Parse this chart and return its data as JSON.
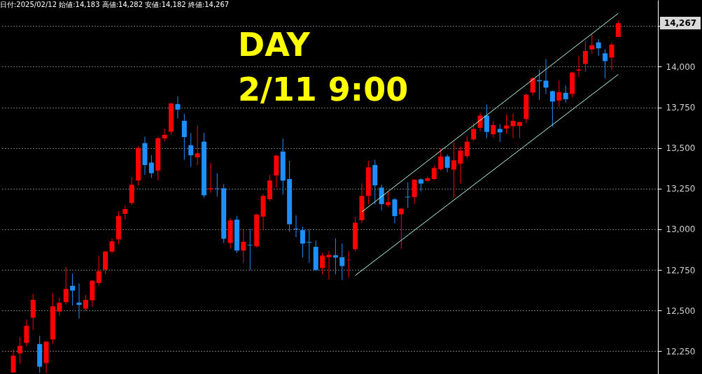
{
  "chart_data": {
    "type": "candlestick",
    "annotations": [
      "日付:2025/02/12 始値:14,183 高値:14,282 安値:14,182 終値:14,267",
      "DAY",
      "2/11 9:00",
      "14,267"
    ],
    "categories": [
      null,
      null,
      null,
      null,
      null,
      null,
      null,
      null,
      null,
      null,
      null,
      null,
      null,
      null,
      null,
      null,
      null,
      null,
      null,
      null,
      null,
      null,
      null,
      null,
      null,
      null,
      null,
      null,
      null,
      null,
      null,
      null,
      null,
      null,
      null,
      null,
      null,
      null,
      null,
      null,
      null,
      null,
      null,
      null,
      null,
      null,
      null,
      null,
      null,
      null,
      null,
      null,
      null,
      null,
      null,
      null,
      null,
      null,
      null,
      null,
      null,
      null,
      null,
      null,
      null,
      null,
      null,
      null,
      null,
      null,
      null,
      null,
      null,
      null,
      null,
      null,
      null,
      null,
      null,
      null,
      null,
      null,
      null,
      null,
      null,
      null,
      null,
      null,
      null,
      null,
      null,
      null,
      null
    ],
    "ohlc": [
      [
        12120,
        12263,
        12118,
        12223
      ],
      [
        12237,
        12337,
        12173,
        12283
      ],
      [
        12301,
        12445,
        12280,
        12406
      ],
      [
        12456,
        12602,
        12380,
        12566
      ],
      [
        12294,
        12344,
        12118,
        12155
      ],
      [
        12177,
        12312,
        12118,
        12309
      ],
      [
        12323,
        12605,
        12294,
        12526
      ],
      [
        12494,
        12580,
        12469,
        12548
      ],
      [
        12552,
        12766,
        12537,
        12633
      ],
      [
        12652,
        12728,
        12531,
        12623
      ],
      [
        12549,
        12666,
        12451,
        12535
      ],
      [
        12512,
        12596,
        12497,
        12566
      ],
      [
        12563,
        12687,
        12523,
        12683
      ],
      [
        12670,
        12835,
        12652,
        12742
      ],
      [
        12752,
        12866,
        12723,
        12863
      ],
      [
        12863,
        12945,
        12852,
        12926
      ],
      [
        12938,
        13110,
        12909,
        13081
      ],
      [
        13095,
        13145,
        13059,
        13124
      ],
      [
        13162,
        13321,
        13149,
        13274
      ],
      [
        13300,
        13510,
        13270,
        13500
      ],
      [
        13530,
        13570,
        13335,
        13395
      ],
      [
        13410,
        13455,
        13317,
        13345
      ],
      [
        13360,
        13567,
        13303,
        13560
      ],
      [
        13559,
        13617,
        13541,
        13581
      ],
      [
        13600,
        13776,
        13581,
        13774
      ],
      [
        13770,
        13817,
        13681,
        13736
      ],
      [
        13667,
        13710,
        13428,
        13567
      ],
      [
        13517,
        13591,
        13384,
        13455
      ],
      [
        13442,
        13638,
        13395,
        13467
      ],
      [
        13539,
        13593,
        13195,
        13209
      ],
      [
        13245,
        13407,
        13224,
        13252
      ],
      [
        13251,
        13345,
        13202,
        13248
      ],
      [
        13252,
        13278,
        12916,
        12942
      ],
      [
        12916,
        13069,
        12880,
        13055
      ],
      [
        13059,
        13081,
        12855,
        12869
      ],
      [
        12869,
        13002,
        12795,
        12923
      ],
      [
        12904,
        13002,
        12749,
        12900
      ],
      [
        12895,
        13095,
        12890,
        13091
      ],
      [
        13078,
        13217,
        12995,
        13205
      ],
      [
        13185,
        13334,
        13174,
        13300
      ],
      [
        13331,
        13456,
        13255,
        13453
      ],
      [
        13478,
        13557,
        13215,
        13299
      ],
      [
        13309,
        13421,
        12985,
        13031
      ],
      [
        13004,
        13085,
        12952,
        13000
      ],
      [
        12995,
        13016,
        12826,
        12912
      ],
      [
        12922,
        13002,
        12795,
        12918
      ],
      [
        12892,
        12931,
        12745,
        12749
      ],
      [
        12762,
        12855,
        12723,
        12838
      ],
      [
        12828,
        12866,
        12692,
        12843
      ],
      [
        12840,
        12945,
        12723,
        12826
      ],
      [
        12828,
        12912,
        12688,
        12774
      ],
      [
        12810,
        12866,
        12702,
        12812
      ],
      [
        12878,
        13076,
        12866,
        13041
      ],
      [
        13056,
        13281,
        13038,
        13205
      ],
      [
        13206,
        13421,
        13152,
        13381
      ],
      [
        13395,
        13427,
        13152,
        13270
      ],
      [
        13256,
        13274,
        13116,
        13155
      ],
      [
        13149,
        13231,
        13138,
        13167
      ],
      [
        13184,
        13192,
        13038,
        13081
      ],
      [
        13092,
        13131,
        12880,
        13127
      ],
      [
        13200,
        13288,
        13131,
        13196
      ],
      [
        13198,
        13308,
        13155,
        13305
      ],
      [
        13307,
        13312,
        13235,
        13281
      ],
      [
        13298,
        13324,
        13292,
        13314
      ],
      [
        13309,
        13393,
        13303,
        13377
      ],
      [
        13369,
        13496,
        13360,
        13448
      ],
      [
        13448,
        13460,
        13352,
        13378
      ],
      [
        13367,
        13535,
        13195,
        13424
      ],
      [
        13403,
        13510,
        13281,
        13484
      ],
      [
        13450,
        13574,
        13438,
        13539
      ],
      [
        13553,
        13656,
        13545,
        13617
      ],
      [
        13624,
        13717,
        13603,
        13699
      ],
      [
        13699,
        13767,
        13560,
        13599
      ],
      [
        13584,
        13667,
        13563,
        13641
      ],
      [
        13617,
        13646,
        13538,
        13596
      ],
      [
        13620,
        13707,
        13588,
        13638
      ],
      [
        13634,
        13713,
        13561,
        13667
      ],
      [
        13635,
        13660,
        13561,
        13660
      ],
      [
        13678,
        13836,
        13653,
        13827
      ],
      [
        13841,
        13936,
        13822,
        13929
      ],
      [
        13917,
        13982,
        13796,
        13910
      ],
      [
        13914,
        14046,
        13832,
        13871
      ],
      [
        13849,
        13853,
        13631,
        13786
      ],
      [
        13792,
        13917,
        13753,
        13843
      ],
      [
        13839,
        13884,
        13779,
        13800
      ],
      [
        13832,
        13967,
        13810,
        13964
      ],
      [
        13976,
        14064,
        13936,
        13982
      ],
      [
        14017,
        14157,
        13968,
        14096
      ],
      [
        14106,
        14199,
        14079,
        14132
      ],
      [
        14149,
        14170,
        14067,
        14113
      ],
      [
        14082,
        14106,
        13927,
        14034
      ],
      [
        14056,
        14150,
        13979,
        14136
      ],
      [
        14183,
        14282,
        14182,
        14267
      ]
    ],
    "colors": [
      "#ff0000",
      "#ff0000",
      "#ff0000",
      "#ff0000",
      "#1e8fff",
      "#ff0000",
      "#ff0000",
      "#ff0000",
      "#ff0000",
      "#1e8fff",
      "#1e8fff",
      "#ff0000",
      "#ff0000",
      "#ff0000",
      "#ff0000",
      "#ff0000",
      "#ff0000",
      "#ff0000",
      "#ff0000",
      "#ff0000",
      "#1e8fff",
      "#1e8fff",
      "#ff0000",
      "#ff0000",
      "#ff0000",
      "#1e8fff",
      "#1e8fff",
      "#1e8fff",
      "#ff0000",
      "#1e8fff",
      "#ff0000",
      "#1e8fff",
      "#1e8fff",
      "#ff0000",
      "#1e8fff",
      "#ff0000",
      "#1e8fff",
      "#ff0000",
      "#ff0000",
      "#ff0000",
      "#ff0000",
      "#1e8fff",
      "#1e8fff",
      "#1e8fff",
      "#1e8fff",
      "#1e8fff",
      "#1e8fff",
      "#ff0000",
      "#ff0000",
      "#1e8fff",
      "#1e8fff",
      "#ff0000",
      "#ff0000",
      "#ff0000",
      "#ff0000",
      "#1e8fff",
      "#1e8fff",
      "#ff0000",
      "#1e8fff",
      "#ff0000",
      "#1e8fff",
      "#ff0000",
      "#1e8fff",
      "#ff0000",
      "#ff0000",
      "#ff0000",
      "#1e8fff",
      "#ff0000",
      "#ff0000",
      "#ff0000",
      "#ff0000",
      "#ff0000",
      "#1e8fff",
      "#ff0000",
      "#1e8fff",
      "#ff0000",
      "#ff0000",
      "#ff0000",
      "#ff0000",
      "#ff0000",
      "#1e8fff",
      "#1e8fff",
      "#1e8fff",
      "#ff0000",
      "#1e8fff",
      "#ff0000",
      "#ff0000",
      "#ff0000",
      "#ff0000",
      "#1e8fff",
      "#1e8fff",
      "#ff0000",
      "#ff0000"
    ],
    "series": [
      {
        "type": "line",
        "color": "#b4fff0",
        "values": [
          null,
          null,
          null,
          null,
          null,
          null,
          null,
          null,
          null,
          null,
          null,
          null,
          null,
          null,
          null,
          null,
          null,
          null,
          null,
          null,
          null,
          null,
          null,
          null,
          null,
          null,
          null,
          null,
          null,
          null,
          null,
          null,
          null,
          null,
          null,
          null,
          null,
          null,
          null,
          null,
          null,
          null,
          null,
          null,
          null,
          null,
          null,
          null,
          null,
          null,
          null,
          null,
          12716,
          null,
          null,
          null,
          null,
          null,
          null,
          null,
          null,
          null,
          null,
          null,
          null,
          null,
          null,
          null,
          null,
          null,
          null,
          null,
          null,
          null,
          null,
          null,
          null,
          null,
          null,
          null,
          null,
          null,
          null,
          null,
          null,
          null,
          null,
          null,
          null,
          null,
          null,
          null,
          13952
        ]
      },
      {
        "type": "line",
        "color": "#b4fff0",
        "values": [
          null,
          null,
          null,
          null,
          null,
          null,
          null,
          null,
          null,
          null,
          null,
          null,
          null,
          null,
          null,
          null,
          null,
          null,
          null,
          null,
          null,
          null,
          null,
          null,
          null,
          null,
          null,
          null,
          null,
          null,
          null,
          null,
          null,
          null,
          null,
          null,
          null,
          null,
          null,
          null,
          null,
          null,
          null,
          null,
          null,
          null,
          null,
          null,
          null,
          null,
          null,
          null,
          null,
          13107,
          null,
          null,
          null,
          null,
          null,
          null,
          null,
          null,
          null,
          null,
          null,
          null,
          null,
          null,
          null,
          null,
          null,
          null,
          null,
          null,
          null,
          null,
          null,
          null,
          null,
          null,
          null,
          null,
          null,
          null,
          null,
          null,
          null,
          null,
          null,
          null,
          null,
          null,
          14328
        ]
      }
    ],
    "ylim": [
      12110,
      14410
    ],
    "yticks": [
      {
        "value": 12250,
        "label": "12,250"
      },
      {
        "value": 12500,
        "label": "12,500"
      },
      {
        "value": 12750,
        "label": "12,750"
      },
      {
        "value": 13000,
        "label": "13,000"
      },
      {
        "value": 13250,
        "label": "13,250"
      },
      {
        "value": 13500,
        "label": "13,500"
      },
      {
        "value": 13750,
        "label": "13,750"
      },
      {
        "value": 14000,
        "label": "14,000"
      },
      {
        "value": 14250,
        "label": null
      }
    ],
    "grid": "y"
  }
}
